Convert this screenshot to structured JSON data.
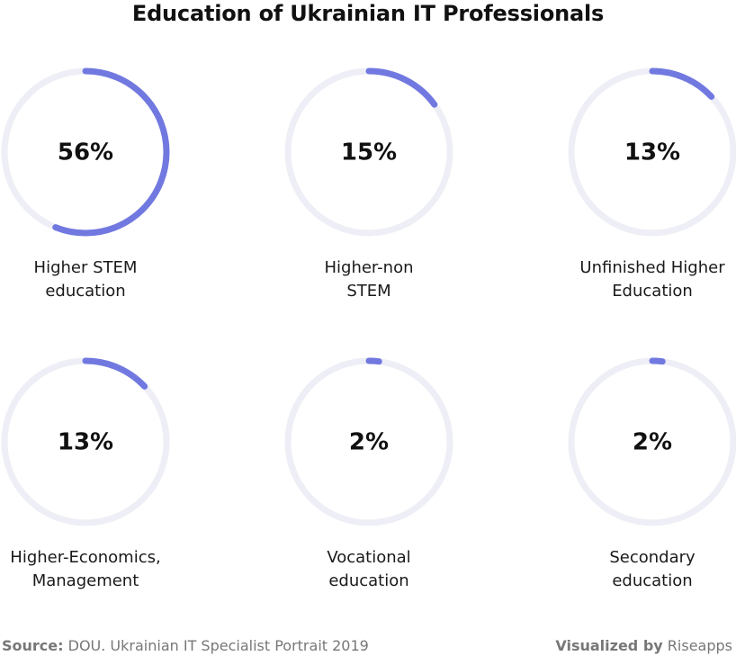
{
  "chart_data": {
    "type": "donut",
    "title": "Education of Ukrainian IT Professionals",
    "series": [
      {
        "label": "Higher STEM\neducation",
        "value": 56,
        "display": "56%"
      },
      {
        "label": "Higher-non\nSTEM",
        "value": 15,
        "display": "15%"
      },
      {
        "label": "Unfinished Higher\nEducation",
        "value": 13,
        "display": "13%"
      },
      {
        "label": "Higher-Economics,\nManagement",
        "value": 13,
        "display": "13%"
      },
      {
        "label": "Vocational\neducation",
        "value": 2,
        "display": "2%"
      },
      {
        "label": "Secondary\neducation",
        "value": 2,
        "display": "2%"
      }
    ],
    "max": 100
  },
  "colors": {
    "accent": "#7179e0",
    "track": "#eeeef6"
  },
  "footer": {
    "source_label": "Source:",
    "source_text": "DOU. Ukrainian IT Specialist Portrait 2019",
    "credit_label": "Visualized by",
    "credit_text": "Riseapps"
  }
}
